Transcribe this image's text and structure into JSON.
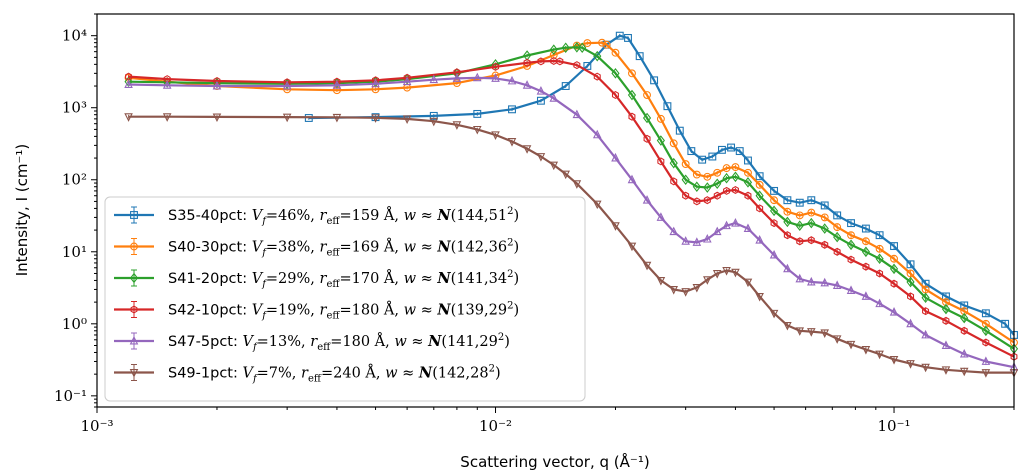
{
  "chart_data": {
    "type": "line",
    "xlabel": "Scattering vector, q (Å⁻¹)",
    "ylabel": "Intensity, I (cm⁻¹)",
    "xscale": "log",
    "yscale": "log",
    "xlim": [
      0.001,
      0.2
    ],
    "ylim": [
      0.07,
      20000
    ],
    "xticks": [
      {
        "value": 0.001,
        "label": "10⁻³"
      },
      {
        "value": 0.01,
        "label": "10⁻²"
      },
      {
        "value": 0.1,
        "label": "10⁻¹"
      }
    ],
    "yticks": [
      {
        "value": 0.1,
        "label": "10⁻¹"
      },
      {
        "value": 1,
        "label": "10⁰"
      },
      {
        "value": 10,
        "label": "10¹"
      },
      {
        "value": 100,
        "label": "10²"
      },
      {
        "value": 1000,
        "label": "10³"
      },
      {
        "value": 10000,
        "label": "10⁴"
      }
    ],
    "grid": false,
    "legend_position": "lower-left",
    "series": [
      {
        "name": "S35-40pct: Vf=46%, reff=159 Å, w ≈ N(144,51²)",
        "legend": {
          "sample": "S35-40pct:",
          "vf": "46%",
          "reff": "159 Å",
          "normal": "(144,51",
          "exp": "2",
          "close": ")"
        },
        "color": "#1f77b4",
        "marker": "square",
        "x": [
          0.0034,
          0.005,
          0.007,
          0.009,
          0.011,
          0.013,
          0.015,
          0.017,
          0.019,
          0.0205,
          0.0215,
          0.023,
          0.025,
          0.027,
          0.029,
          0.031,
          0.033,
          0.035,
          0.037,
          0.039,
          0.041,
          0.043,
          0.046,
          0.05,
          0.054,
          0.058,
          0.062,
          0.067,
          0.072,
          0.078,
          0.085,
          0.092,
          0.1,
          0.11,
          0.12,
          0.135,
          0.15,
          0.17,
          0.19,
          0.2
        ],
        "y": [
          720,
          740,
          770,
          820,
          950,
          1250,
          2000,
          3800,
          7500,
          10000,
          9300,
          5200,
          2400,
          1050,
          480,
          250,
          190,
          210,
          260,
          280,
          250,
          185,
          112,
          70,
          52,
          48,
          52,
          44,
          32,
          25,
          21,
          17,
          12,
          6.7,
          3.6,
          2.4,
          1.8,
          1.4,
          1.0,
          0.7
        ]
      },
      {
        "name": "S40-30pct: Vf=38%, reff=169 Å, w ≈ N(142,36²)",
        "legend": {
          "sample": "S40-30pct:",
          "vf": "38%",
          "reff": "169 Å",
          "normal": "(142,36",
          "exp": "2",
          "close": ")"
        },
        "color": "#ff7f0e",
        "marker": "circle",
        "x": [
          0.0012,
          0.0015,
          0.002,
          0.003,
          0.004,
          0.005,
          0.006,
          0.008,
          0.01,
          0.012,
          0.014,
          0.016,
          0.017,
          0.0185,
          0.019,
          0.02,
          0.022,
          0.024,
          0.026,
          0.028,
          0.03,
          0.032,
          0.034,
          0.036,
          0.038,
          0.04,
          0.043,
          0.046,
          0.05,
          0.054,
          0.058,
          0.062,
          0.067,
          0.072,
          0.078,
          0.085,
          0.092,
          0.1,
          0.11,
          0.12,
          0.135,
          0.15,
          0.17,
          0.2
        ],
        "y": [
          2600,
          2300,
          2000,
          1800,
          1750,
          1800,
          1900,
          2200,
          2800,
          3800,
          5400,
          7300,
          7900,
          8000,
          7500,
          5800,
          3000,
          1500,
          700,
          320,
          165,
          118,
          110,
          125,
          145,
          150,
          125,
          85,
          52,
          36,
          32,
          35,
          30,
          22,
          17,
          14,
          11,
          8,
          5,
          3,
          2,
          1.5,
          1.0,
          0.55
        ]
      },
      {
        "name": "S41-20pct: Vf=29%, reff=170 Å, w ≈ N(141,34²)",
        "legend": {
          "sample": "S41-20pct:",
          "vf": "29%",
          "reff": "170 Å",
          "normal": "(141,34",
          "exp": "2",
          "close": ")"
        },
        "color": "#2ca02c",
        "marker": "diamond",
        "x": [
          0.0012,
          0.0015,
          0.002,
          0.003,
          0.004,
          0.005,
          0.006,
          0.008,
          0.01,
          0.012,
          0.014,
          0.015,
          0.016,
          0.0165,
          0.018,
          0.02,
          0.022,
          0.024,
          0.026,
          0.028,
          0.03,
          0.032,
          0.034,
          0.036,
          0.038,
          0.04,
          0.043,
          0.046,
          0.05,
          0.054,
          0.058,
          0.062,
          0.067,
          0.072,
          0.078,
          0.085,
          0.092,
          0.1,
          0.11,
          0.12,
          0.135,
          0.15,
          0.17,
          0.2
        ],
        "y": [
          2300,
          2250,
          2200,
          2150,
          2200,
          2300,
          2500,
          3000,
          4000,
          5300,
          6400,
          6800,
          6900,
          6800,
          5200,
          3000,
          1500,
          720,
          350,
          170,
          100,
          80,
          78,
          88,
          105,
          110,
          92,
          60,
          37,
          26,
          23,
          25,
          21,
          16,
          12.5,
          10,
          8,
          5.8,
          3.8,
          2.3,
          1.6,
          1.2,
          0.8,
          0.45
        ]
      },
      {
        "name": "S42-10pct: Vf=19%, reff=180 Å, w ≈ N(139,29²)",
        "legend": {
          "sample": "S42-10pct:",
          "vf": "19%",
          "reff": "180 Å",
          "normal": "(139,29",
          "exp": "2",
          "close": ")"
        },
        "color": "#d62728",
        "marker": "hexagon",
        "x": [
          0.0012,
          0.0015,
          0.002,
          0.003,
          0.004,
          0.005,
          0.006,
          0.008,
          0.01,
          0.012,
          0.013,
          0.014,
          0.0145,
          0.016,
          0.018,
          0.02,
          0.022,
          0.024,
          0.026,
          0.028,
          0.03,
          0.032,
          0.034,
          0.036,
          0.038,
          0.04,
          0.043,
          0.046,
          0.05,
          0.054,
          0.058,
          0.062,
          0.067,
          0.072,
          0.078,
          0.085,
          0.092,
          0.1,
          0.11,
          0.12,
          0.135,
          0.15,
          0.17,
          0.2
        ],
        "y": [
          2700,
          2500,
          2350,
          2250,
          2300,
          2400,
          2600,
          3100,
          3700,
          4200,
          4400,
          4450,
          4400,
          3900,
          2700,
          1500,
          750,
          370,
          180,
          95,
          60,
          50,
          52,
          60,
          70,
          72,
          60,
          40,
          25,
          17,
          14,
          14.5,
          12.5,
          10,
          7.8,
          6.2,
          5,
          3.6,
          2.4,
          1.5,
          1.1,
          0.8,
          0.55,
          0.35
        ]
      },
      {
        "name": "S47-5pct: Vf=13%, reff=180 Å, w ≈ N(141,29²)",
        "legend": {
          "sample": "S47-5pct:",
          "vf": "13%",
          "reff": "180 Å",
          "normal": "(141,29",
          "exp": "2",
          "close": ")"
        },
        "color": "#9467bd",
        "marker": "triangle-up",
        "x": [
          0.0012,
          0.0015,
          0.002,
          0.003,
          0.004,
          0.005,
          0.006,
          0.007,
          0.008,
          0.009,
          0.01,
          0.011,
          0.012,
          0.013,
          0.014,
          0.016,
          0.018,
          0.02,
          0.022,
          0.024,
          0.026,
          0.028,
          0.03,
          0.032,
          0.034,
          0.036,
          0.038,
          0.04,
          0.043,
          0.046,
          0.05,
          0.054,
          0.058,
          0.062,
          0.067,
          0.072,
          0.078,
          0.085,
          0.092,
          0.1,
          0.11,
          0.12,
          0.135,
          0.15,
          0.17,
          0.2
        ],
        "y": [
          2100,
          2050,
          2000,
          2000,
          2050,
          2150,
          2300,
          2450,
          2550,
          2600,
          2550,
          2350,
          2050,
          1700,
          1350,
          800,
          420,
          200,
          100,
          52,
          30,
          19,
          14,
          13.5,
          15,
          19,
          23,
          25,
          21,
          14.5,
          9,
          5.8,
          4.2,
          3.8,
          3.7,
          3.4,
          2.9,
          2.4,
          1.9,
          1.45,
          1.0,
          0.7,
          0.5,
          0.38,
          0.3,
          0.25
        ]
      },
      {
        "name": "S49-1pct: Vf=7%, reff=240 Å, w ≈ N(142,28²)",
        "legend": {
          "sample": "S49-1pct:",
          "vf": "7%",
          "reff": "240 Å",
          "normal": "(142,28",
          "exp": "2",
          "close": ")"
        },
        "color": "#8c564b",
        "marker": "triangle-down",
        "x": [
          0.0012,
          0.0015,
          0.002,
          0.003,
          0.004,
          0.005,
          0.006,
          0.007,
          0.008,
          0.009,
          0.01,
          0.011,
          0.012,
          0.013,
          0.014,
          0.015,
          0.016,
          0.018,
          0.02,
          0.022,
          0.024,
          0.026,
          0.028,
          0.03,
          0.032,
          0.034,
          0.036,
          0.038,
          0.04,
          0.043,
          0.046,
          0.05,
          0.054,
          0.058,
          0.062,
          0.067,
          0.072,
          0.078,
          0.085,
          0.092,
          0.1,
          0.11,
          0.12,
          0.135,
          0.15,
          0.17,
          0.2
        ],
        "y": [
          750,
          750,
          745,
          740,
          735,
          725,
          700,
          650,
          580,
          500,
          420,
          340,
          270,
          210,
          160,
          120,
          88,
          46,
          23,
          12,
          6.5,
          4,
          3,
          2.8,
          3.2,
          4.1,
          5,
          5.5,
          5.2,
          3.8,
          2.4,
          1.4,
          0.95,
          0.8,
          0.78,
          0.75,
          0.62,
          0.52,
          0.44,
          0.38,
          0.32,
          0.28,
          0.25,
          0.23,
          0.22,
          0.21,
          0.21
        ]
      }
    ]
  }
}
